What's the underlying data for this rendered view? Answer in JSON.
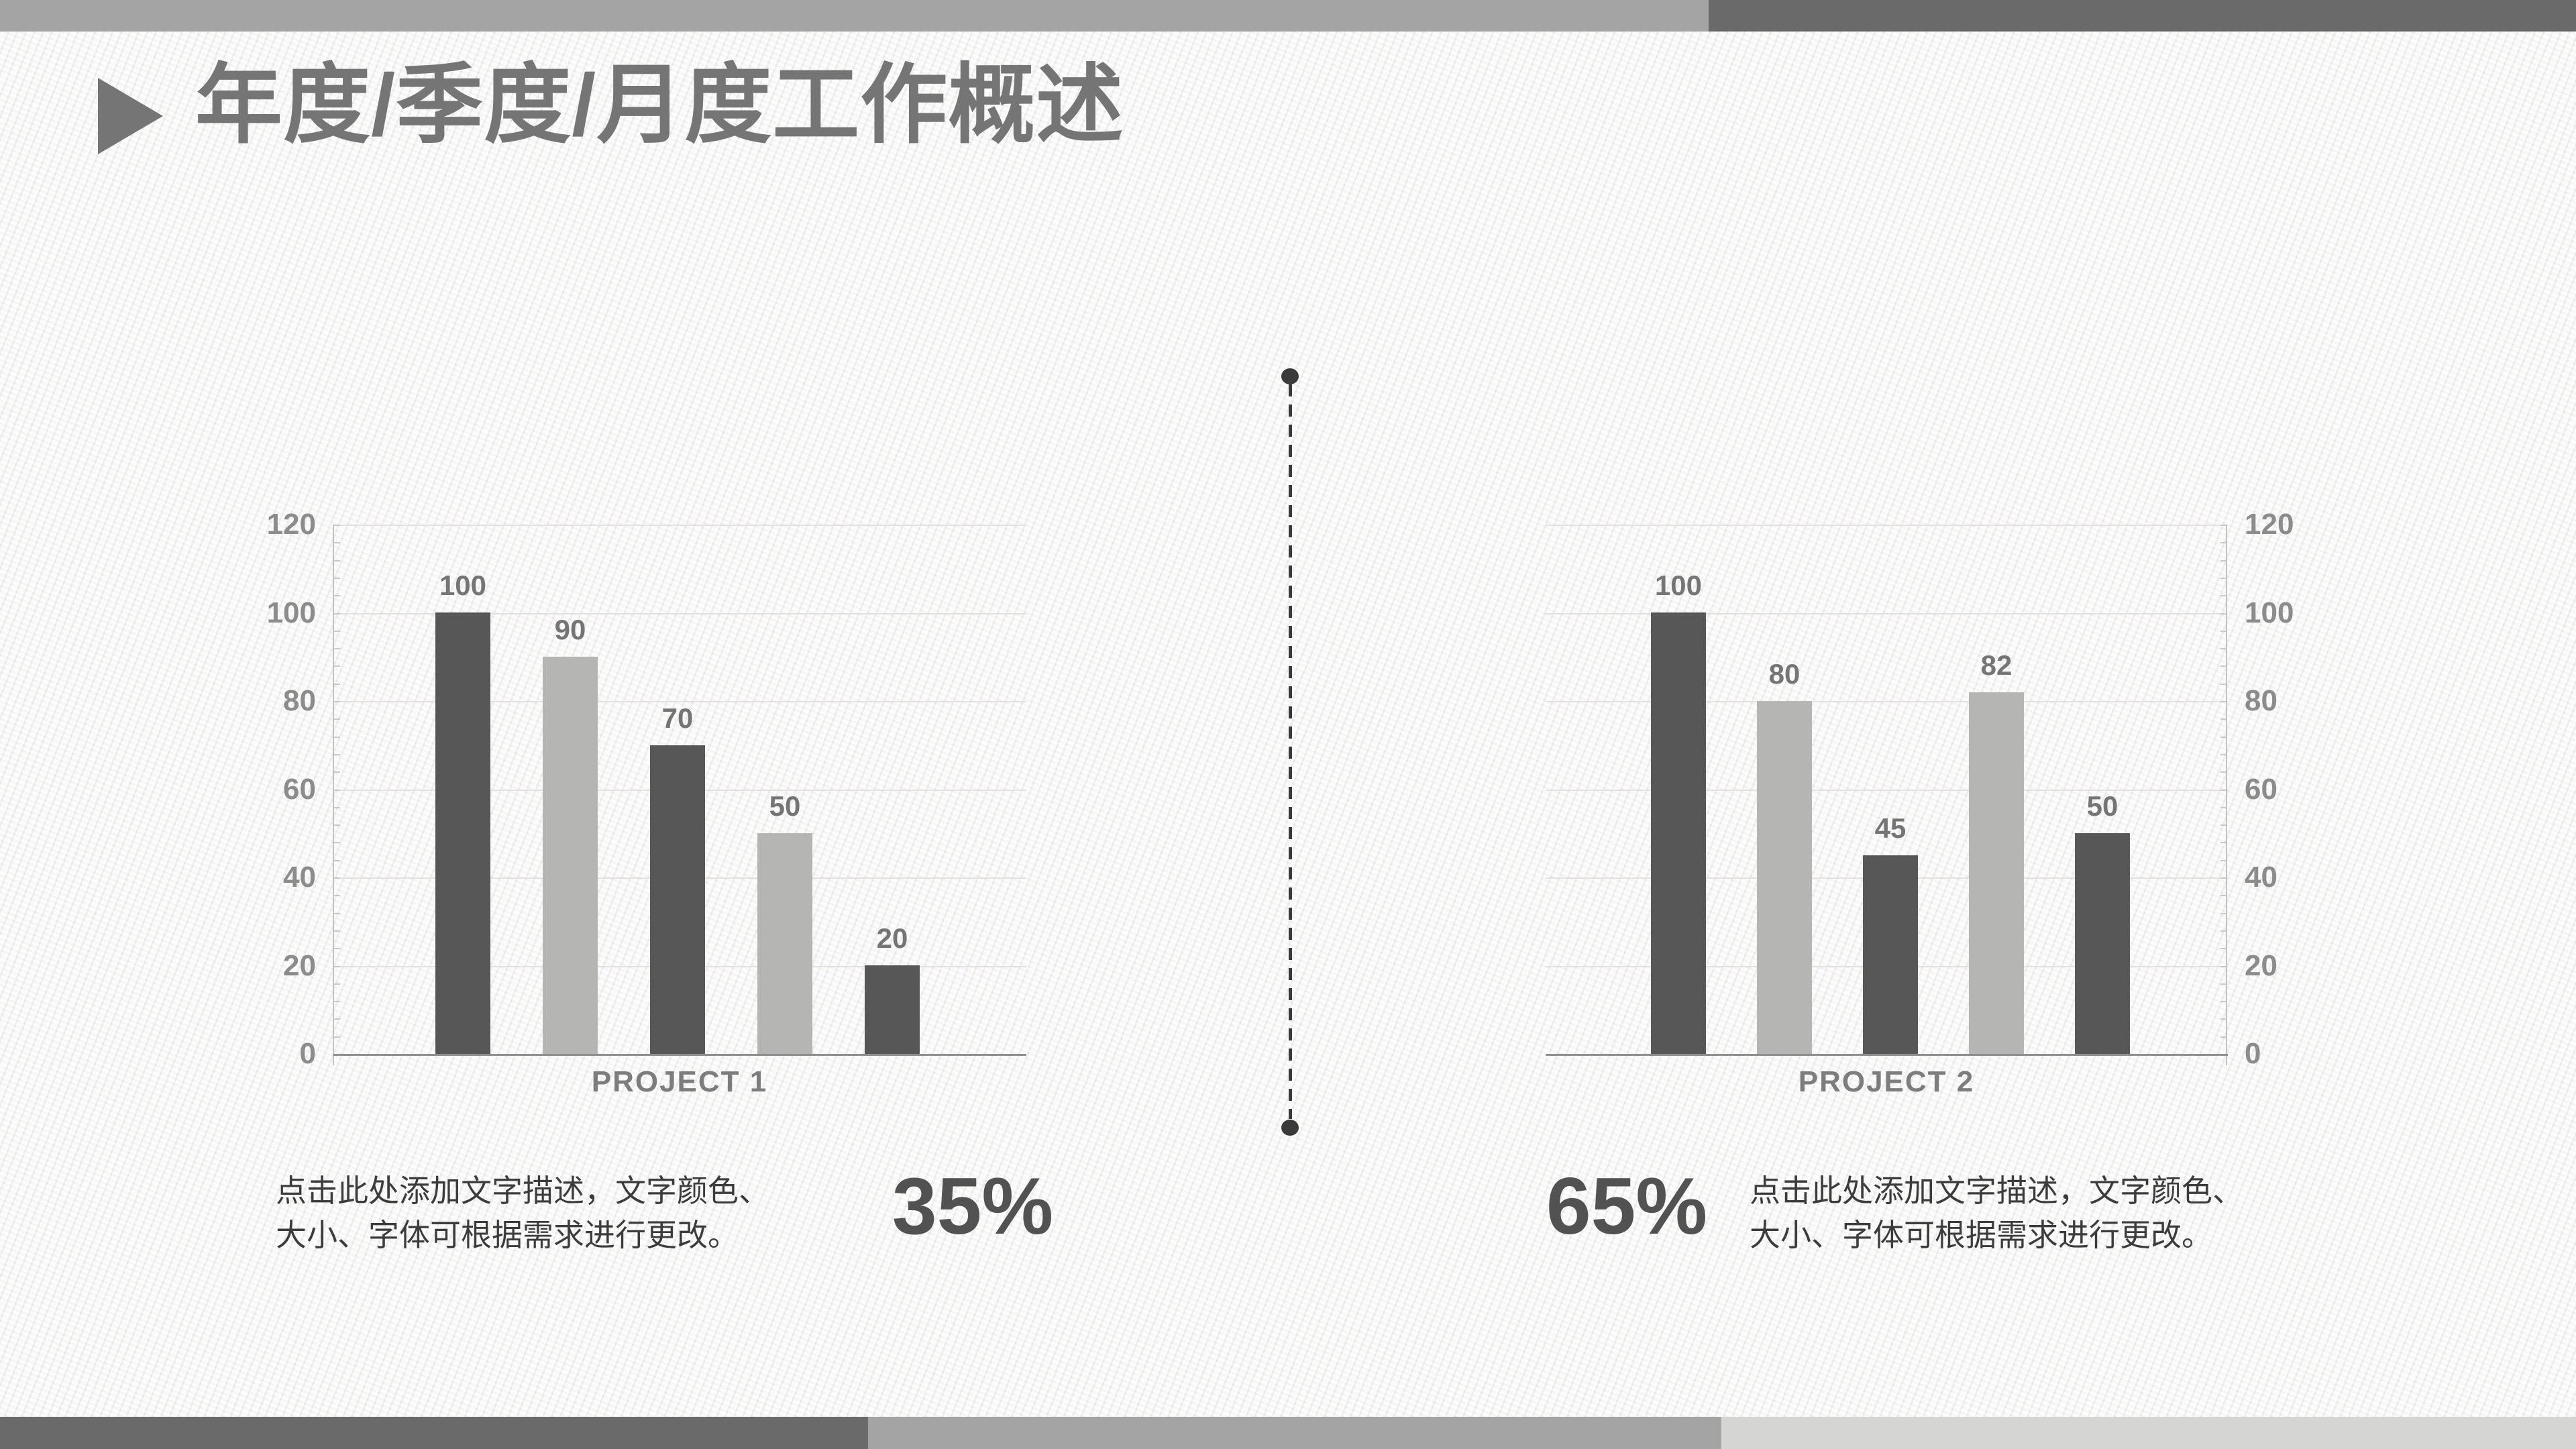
{
  "slide": {
    "title": "年度/季度/月度工作概述",
    "title_arrow_icon": "right-triangle",
    "left_note": "点击此处添加文字描述，文字颜色、\n大小、字体可根据需求进行更改。",
    "right_note": "点击此处添加文字描述，文字颜色、\n大小、字体可根据需求进行更改。",
    "left_percent": "35%",
    "right_percent": "65%"
  },
  "colors": {
    "title_gray": "#757575",
    "bar_dark": "#575757",
    "bar_light": "#b5b5b4",
    "top_bar_light": "#a4a4a4",
    "top_bar_dark": "#6a6a6a",
    "bottom_bar_light": "#d5d5d3",
    "divider": "#3a3a3a",
    "note_text": "#3c3c3c",
    "percent_text": "#525252"
  },
  "chart_data": [
    {
      "type": "bar",
      "category": "PROJECT 1",
      "values": [
        100,
        90,
        70,
        50,
        20
      ],
      "data_labels": [
        "100",
        "90",
        "70",
        "50",
        "20"
      ],
      "bar_colors": [
        "#575757",
        "#b5b5b4",
        "#575757",
        "#b5b5b4",
        "#575757"
      ],
      "ylim": [
        0,
        120
      ],
      "yticks": [
        0,
        20,
        40,
        60,
        80,
        100,
        120
      ],
      "y_axis_side": "left",
      "grid": true,
      "legend": false,
      "title": ""
    },
    {
      "type": "bar",
      "category": "PROJECT 2",
      "values": [
        100,
        80,
        45,
        82,
        50
      ],
      "data_labels": [
        "100",
        "80",
        "45",
        "82",
        "50"
      ],
      "bar_colors": [
        "#575757",
        "#b5b5b4",
        "#575757",
        "#b5b5b4",
        "#575757"
      ],
      "ylim": [
        0,
        120
      ],
      "yticks": [
        0,
        20,
        40,
        60,
        80,
        100,
        120
      ],
      "y_axis_side": "right",
      "grid": true,
      "legend": false,
      "title": ""
    }
  ]
}
